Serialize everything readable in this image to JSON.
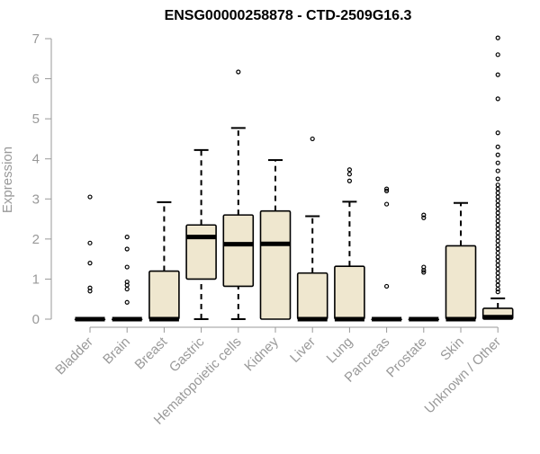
{
  "chart_data": {
    "type": "boxplot",
    "title": "ENSG00000258878 - CTD-2509G16.3",
    "xlabel": "",
    "ylabel": "Expression",
    "ylim": [
      0,
      7
    ],
    "yticks": [
      "0",
      "1",
      "2",
      "3",
      "4",
      "5",
      "6",
      "7"
    ],
    "grid": false,
    "colors": {
      "box_fill": "#efe7cf",
      "stroke": "#000000",
      "axis": "#999999"
    },
    "categories": [
      "Bladder",
      "Brain",
      "Breast",
      "Gastric",
      "Hematopoietic cells",
      "Kidney",
      "Liver",
      "Lung",
      "Pancreas",
      "Prostate",
      "Skin",
      "Unknown / Other"
    ],
    "boxes": [
      {
        "category": "Bladder",
        "min": 0,
        "q1": 0,
        "median": 0,
        "q3": 0,
        "max": 0,
        "outliers": [
          0.7,
          0.78,
          1.4,
          1.9,
          3.05
        ]
      },
      {
        "category": "Brain",
        "min": 0,
        "q1": 0,
        "median": 0,
        "q3": 0,
        "max": 0,
        "outliers": [
          0.42,
          0.75,
          0.85,
          0.93,
          1.3,
          1.75,
          2.05
        ]
      },
      {
        "category": "Breast",
        "min": 0,
        "q1": 0,
        "median": 0,
        "q3": 1.2,
        "max": 2.92,
        "outliers": []
      },
      {
        "category": "Gastric",
        "min": 0,
        "q1": 1.0,
        "median": 2.05,
        "q3": 2.35,
        "max": 4.22,
        "outliers": []
      },
      {
        "category": "Hematopoietic cells",
        "min": 0,
        "q1": 0.82,
        "median": 1.87,
        "q3": 2.6,
        "max": 4.77,
        "outliers": [
          6.17
        ]
      },
      {
        "category": "Kidney",
        "min": 0,
        "q1": 0,
        "median": 1.88,
        "q3": 2.7,
        "max": 3.97,
        "outliers": []
      },
      {
        "category": "Liver",
        "min": 0,
        "q1": 0,
        "median": 0,
        "q3": 1.15,
        "max": 2.57,
        "outliers": [
          4.5
        ]
      },
      {
        "category": "Lung",
        "min": 0,
        "q1": 0,
        "median": 0,
        "q3": 1.32,
        "max": 2.93,
        "outliers": [
          3.45,
          3.62,
          3.73
        ]
      },
      {
        "category": "Pancreas",
        "min": 0,
        "q1": 0,
        "median": 0,
        "q3": 0,
        "max": 0,
        "outliers": [
          0.82,
          2.87,
          3.2,
          3.25
        ]
      },
      {
        "category": "Prostate",
        "min": 0,
        "q1": 0,
        "median": 0,
        "q3": 0,
        "max": 0,
        "outliers": [
          1.17,
          1.22,
          1.3,
          2.53,
          2.6
        ]
      },
      {
        "category": "Skin",
        "min": 0,
        "q1": 0,
        "median": 0,
        "q3": 1.83,
        "max": 2.9,
        "outliers": []
      },
      {
        "category": "Unknown / Other",
        "min": 0,
        "q1": 0,
        "median": 0.05,
        "q3": 0.27,
        "max": 0.52,
        "outliers": [
          0.68,
          0.75,
          0.85,
          0.95,
          1.05,
          1.15,
          1.25,
          1.35,
          1.45,
          1.55,
          1.65,
          1.75,
          1.85,
          1.95,
          2.05,
          2.15,
          2.25,
          2.35,
          2.45,
          2.55,
          2.65,
          2.75,
          2.85,
          2.95,
          3.05,
          3.15,
          3.25,
          3.35,
          3.5,
          3.7,
          3.9,
          4.1,
          4.3,
          4.65,
          5.5,
          6.1,
          6.6,
          7.02
        ]
      }
    ]
  }
}
